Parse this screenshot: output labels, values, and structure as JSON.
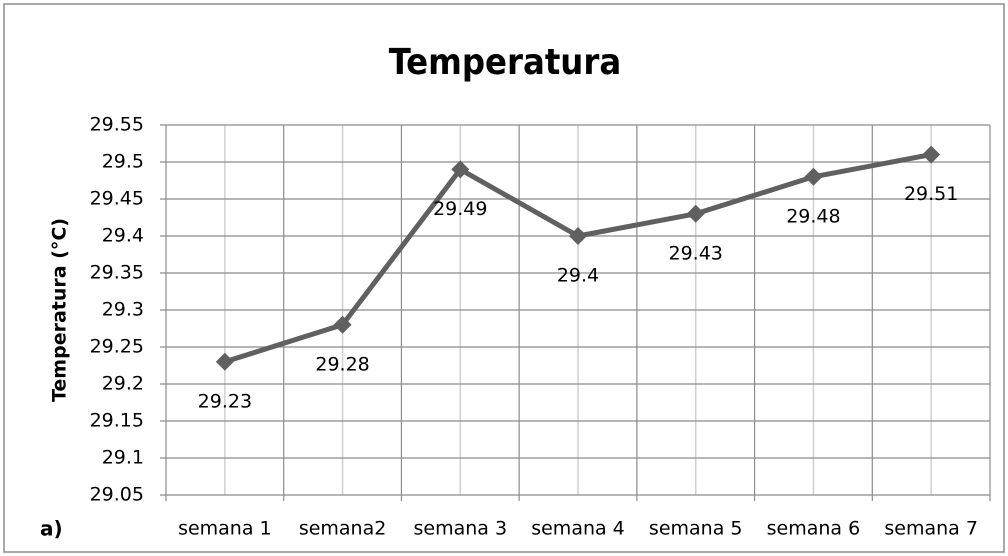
{
  "chart_data": {
    "type": "line",
    "title": "Temperatura",
    "ylabel": "Temperatura (°C)",
    "annotation": "a)",
    "categories": [
      "semana 1",
      "semana2",
      "semana 3",
      "semana 4",
      "semana 5",
      "semana 6",
      "semana 7"
    ],
    "series": [
      {
        "name": "Temperatura",
        "color": "#606060",
        "values": [
          29.23,
          29.28,
          29.49,
          29.4,
          29.43,
          29.48,
          29.51
        ]
      }
    ],
    "ylim": [
      29.05,
      29.55
    ],
    "yticks": [
      29.05,
      29.1,
      29.15,
      29.2,
      29.25,
      29.3,
      29.35,
      29.4,
      29.45,
      29.5,
      29.55
    ],
    "grid": true,
    "legend": false,
    "data_labels": true
  }
}
